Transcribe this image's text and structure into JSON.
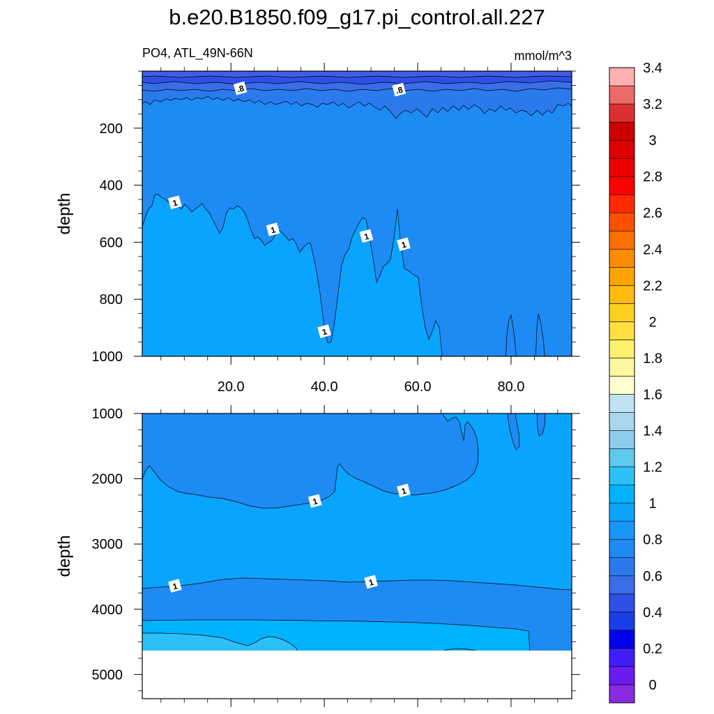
{
  "chart_data": {
    "type": "contour",
    "title": "b.e20.B1850.f09_g17.pi_control.all.227",
    "left_string": "PO4, ATL_49N-66N",
    "right_string": "mmol/m^3",
    "panels": [
      {
        "name": "upper",
        "ylabel": "depth",
        "ylim": [
          0,
          1000
        ],
        "y_reversed": true,
        "xlim": [
          1,
          93
        ],
        "y_ticks": [
          "200",
          "400",
          "600",
          "800",
          "1000"
        ],
        "y_tick_values": [
          200,
          400,
          600,
          800,
          1000
        ],
        "x_ticks": [
          "20.0",
          "40.0",
          "60.0",
          "80.0"
        ],
        "x_tick_values": [
          20,
          40,
          60,
          80
        ],
        "contour_labels": [
          {
            "text": ".8",
            "x": 22,
            "y": 60
          },
          {
            "text": ".8",
            "x": 56,
            "y": 65
          },
          {
            "text": "1",
            "x": 8,
            "y": 460
          },
          {
            "text": "1",
            "x": 29,
            "y": 555
          },
          {
            "text": "1",
            "x": 49,
            "y": 578
          },
          {
            "text": "1",
            "x": 57,
            "y": 607
          },
          {
            "text": "1",
            "x": 40,
            "y": 912
          }
        ]
      },
      {
        "name": "lower",
        "ylabel": "depth",
        "ylim": [
          1000,
          5370
        ],
        "y_reversed": true,
        "xlim": [
          1,
          93
        ],
        "y_ticks": [
          "1000",
          "2000",
          "3000",
          "4000",
          "5000"
        ],
        "y_tick_values": [
          1000,
          2000,
          3000,
          4000,
          5000
        ],
        "ocean_floor_depth": 4620,
        "contour_labels": [
          {
            "text": "1",
            "x": 38,
            "y": 2340
          },
          {
            "text": "1",
            "x": 57,
            "y": 2180
          },
          {
            "text": "1",
            "x": 8,
            "y": 3640
          },
          {
            "text": "1",
            "x": 50,
            "y": 3580
          }
        ]
      }
    ],
    "colorbar": {
      "levels": [
        "0",
        "0.2",
        "0.4",
        "0.6",
        "0.8",
        "1",
        "1.2",
        "1.4",
        "1.6",
        "1.8",
        "2",
        "2.2",
        "2.4",
        "2.6",
        "2.8",
        "3",
        "3.2",
        "3.4"
      ],
      "colors": [
        "#8a2be2",
        "#6a1bf0",
        "#3f1ff5",
        "#0000ee",
        "#1a3fe8",
        "#2e50e8",
        "#3a6ee8",
        "#2a7aee",
        "#1e8af4",
        "#1a96fa",
        "#0aa4ff",
        "#00b2ff",
        "#2cc0f8",
        "#5ec8ef",
        "#8ccdee",
        "#a8d6ef",
        "#c0e2f3",
        "#ffffd0",
        "#fff8a0",
        "#fff070",
        "#ffe040",
        "#ffd020",
        "#ffba10",
        "#ffa300",
        "#ff8c00",
        "#ff7000",
        "#ff5000",
        "#ff2a00",
        "#ff0000",
        "#ee0000",
        "#dd0000",
        "#cc0000",
        "#dc3030",
        "#ec6a6a",
        "#ffb0b0"
      ]
    }
  }
}
